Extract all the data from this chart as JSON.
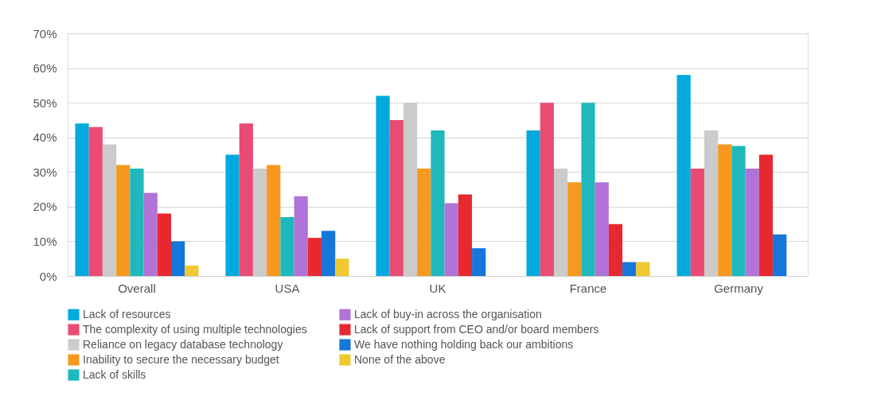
{
  "chart_data": {
    "type": "bar",
    "categories": [
      "Overall",
      "USA",
      "UK",
      "France",
      "Germany"
    ],
    "series": [
      {
        "name": "Lack of resources",
        "color": "#00aade",
        "values": [
          44,
          35,
          52,
          42,
          58
        ]
      },
      {
        "name": "The complexity of using multiple technologies",
        "color": "#ea4b74",
        "values": [
          43,
          44,
          45,
          50,
          31
        ]
      },
      {
        "name": "Reliance on legacy database technology",
        "color": "#cbcbcb",
        "values": [
          38,
          31,
          50,
          31,
          42
        ]
      },
      {
        "name": "Inability to secure the necessary budget",
        "color": "#f7991e",
        "values": [
          32,
          32,
          31,
          27,
          38
        ]
      },
      {
        "name": "Lack of skills",
        "color": "#1fb8bc",
        "values": [
          31,
          17,
          42,
          50,
          37.5
        ]
      },
      {
        "name": "Lack of buy-in across the organisation",
        "color": "#b173d8",
        "values": [
          24,
          23,
          21,
          27,
          31
        ]
      },
      {
        "name": "Lack of support from CEO and/or board members",
        "color": "#e8282f",
        "values": [
          18,
          11,
          23.5,
          15,
          35
        ]
      },
      {
        "name": "We have nothing holding back our ambitions",
        "color": "#1576db",
        "values": [
          10,
          13,
          8,
          4,
          12
        ]
      },
      {
        "name": "None of the above",
        "color": "#efc92f",
        "values": [
          3,
          5,
          null,
          4,
          null
        ]
      }
    ],
    "ylim": [
      0,
      70
    ],
    "yticks": [
      {
        "value": 0,
        "label": "0%"
      },
      {
        "value": 10,
        "label": "10%"
      },
      {
        "value": 20,
        "label": "20%"
      },
      {
        "value": 30,
        "label": "30%"
      },
      {
        "value": 40,
        "label": "40%"
      },
      {
        "value": 50,
        "label": "50%"
      },
      {
        "value": 60,
        "label": "60%"
      },
      {
        "value": 70,
        "label": "70%"
      }
    ],
    "grid": "y",
    "legend": "bottom left"
  }
}
